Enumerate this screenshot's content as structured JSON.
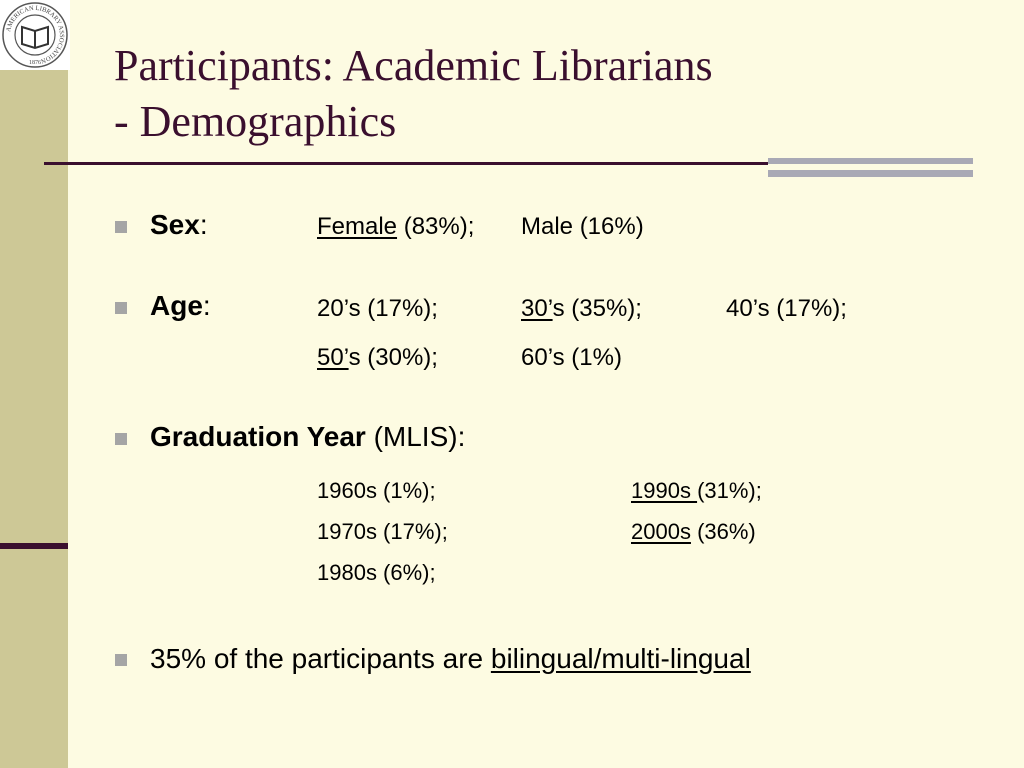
{
  "logo": {
    "ring_text": "AMERICAN LIBRARY ASSOCIATION",
    "year_text": "1876"
  },
  "title": {
    "line1": "Participants: Academic Librarians",
    "line2": "- Demographics"
  },
  "sex": {
    "label": "Sex",
    "colon": ":",
    "female_label": "Female",
    "female_pct": " (83%);",
    "male": "Male (16%)"
  },
  "age": {
    "label": "Age",
    "colon": ":",
    "a20": "20’s (17%);",
    "a30_label": "30’",
    "a30_rest": "s (35%);",
    "a40": "40’s (17%);",
    "a50_label": "50’",
    "a50_rest": "s (30%);",
    "a60": "60’s (1%)"
  },
  "grad": {
    "label": "Graduation Year",
    "paren": " (MLIS):",
    "y1960": "1960s (1%);",
    "y1970": "1970s (17%);",
    "y1980": "1980s (6%);",
    "y1990_label": "1990s ",
    "y1990_rest": "(31%);",
    "y2000_label": "2000s",
    "y2000_rest": " (36%)"
  },
  "lang": {
    "prefix": "35% of the participants are ",
    "link": "bilingual/multi-lingual"
  },
  "colors": {
    "background": "#fdfbe2",
    "title": "#3a0f2e",
    "sidebar": "#cdc896",
    "accent_bar": "#a9a9b5",
    "bullet": "#a5a5a5"
  }
}
